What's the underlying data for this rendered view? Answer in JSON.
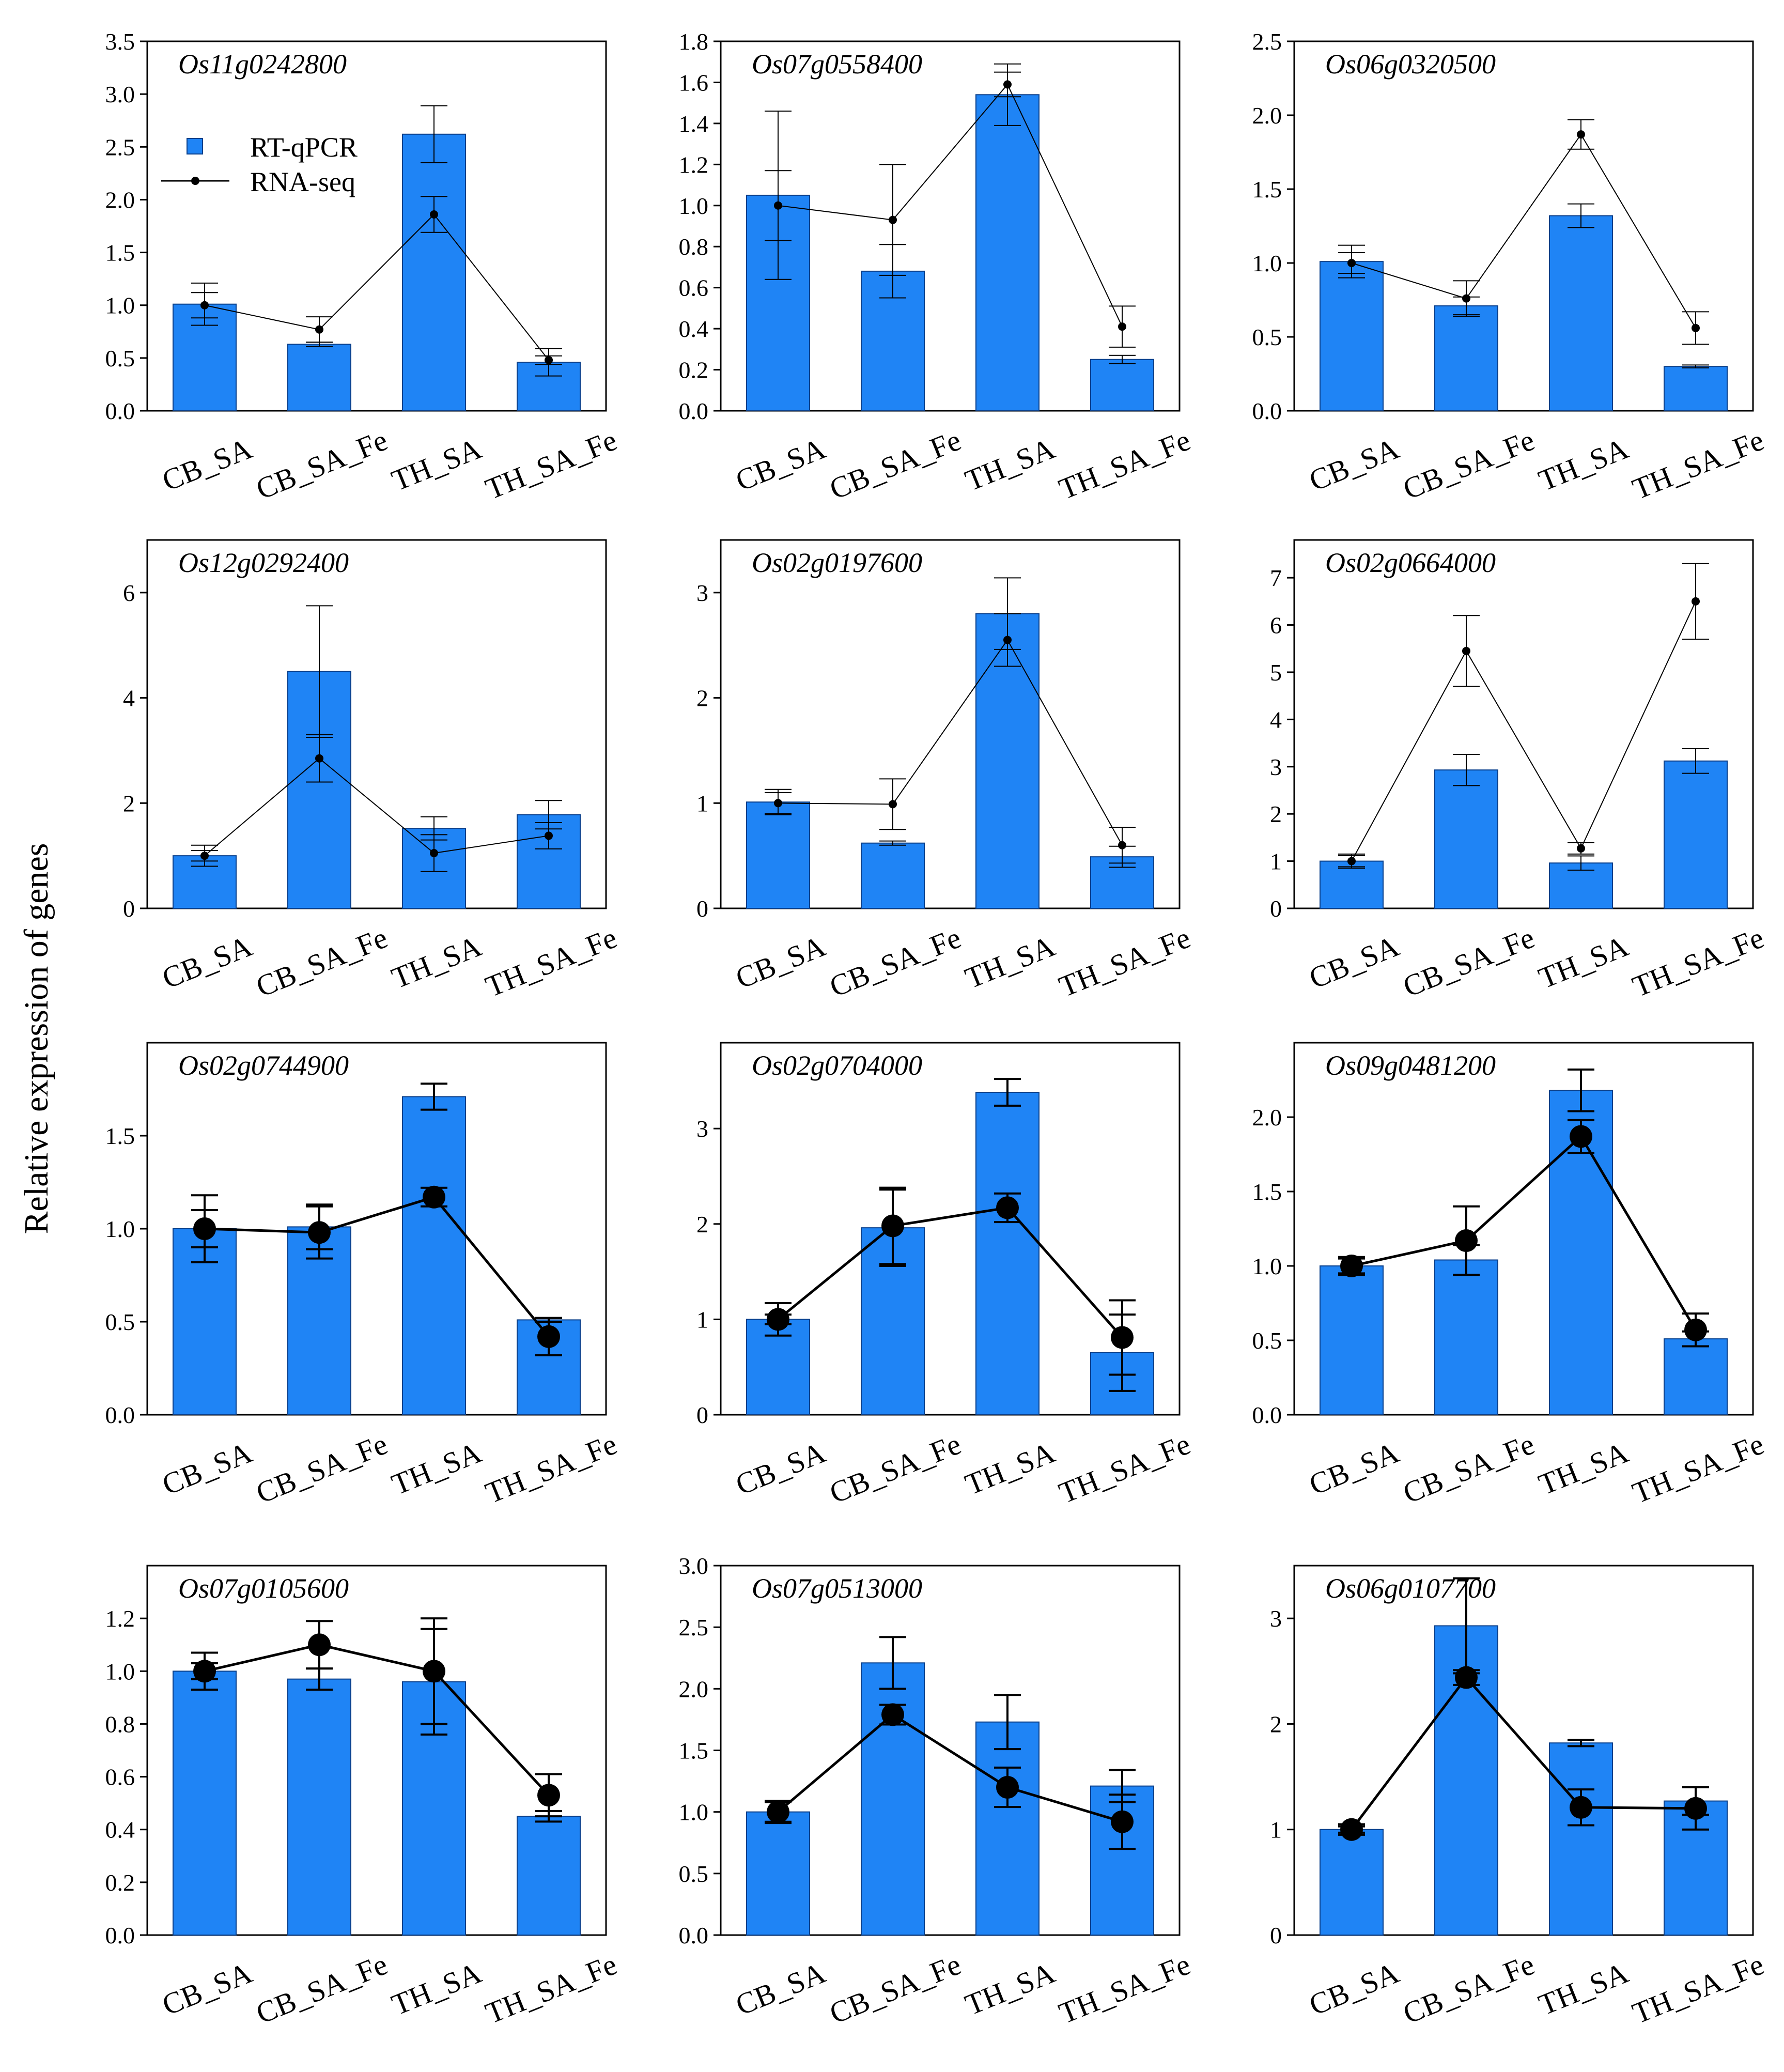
{
  "figure": {
    "ylabel": "Relative expression of genes",
    "legend": {
      "qpcr_label": "RT-qPCR",
      "rnaseq_label": "RNA-seq",
      "placement": "upper-left of first panel"
    },
    "colors": {
      "bar": "#1f84f5",
      "bar_edge": "#0a3f8a",
      "line": "#000000"
    }
  },
  "chart_data": [
    {
      "type": "bar",
      "title": "Os11g0242800",
      "categories": [
        "CB_SA",
        "CB_SA_Fe",
        "TH_SA",
        "TH_SA_Fe"
      ],
      "ylim": [
        0,
        3.5
      ],
      "yticks": [
        0.0,
        0.5,
        1.0,
        1.5,
        2.0,
        2.5,
        3.0,
        3.5
      ],
      "decimals": 1,
      "series": [
        {
          "name": "RT-qPCR",
          "kind": "bar",
          "values": [
            1.01,
            0.63,
            2.62,
            0.46
          ],
          "err": [
            0.2,
            0.02,
            0.27,
            0.13
          ]
        },
        {
          "name": "RNA-seq",
          "kind": "line",
          "values": [
            1.0,
            0.77,
            1.86,
            0.48
          ],
          "err": [
            0.12,
            0.12,
            0.17,
            0.04
          ]
        }
      ],
      "marker": "small"
    },
    {
      "type": "bar",
      "title": "Os07g0558400",
      "categories": [
        "CB_SA",
        "CB_SA_Fe",
        "TH_SA",
        "TH_SA_Fe"
      ],
      "ylim": [
        0,
        1.8
      ],
      "yticks": [
        0.0,
        0.2,
        0.4,
        0.6,
        0.8,
        1.0,
        1.2,
        1.4,
        1.6,
        1.8
      ],
      "decimals": 1,
      "series": [
        {
          "name": "RT-qPCR",
          "kind": "bar",
          "values": [
            1.05,
            0.68,
            1.54,
            0.25
          ],
          "err": [
            0.41,
            0.13,
            0.15,
            0.02
          ]
        },
        {
          "name": "RNA-seq",
          "kind": "line",
          "values": [
            1.0,
            0.93,
            1.59,
            0.41
          ],
          "err": [
            0.17,
            0.27,
            0.06,
            0.1
          ]
        }
      ],
      "marker": "small"
    },
    {
      "type": "bar",
      "title": "Os06g0320500",
      "categories": [
        "CB_SA",
        "CB_SA_Fe",
        "TH_SA",
        "TH_SA_Fe"
      ],
      "ylim": [
        0,
        2.5
      ],
      "yticks": [
        0.0,
        0.5,
        1.0,
        1.5,
        2.0,
        2.5
      ],
      "decimals": 1,
      "series": [
        {
          "name": "RT-qPCR",
          "kind": "bar",
          "values": [
            1.01,
            0.71,
            1.32,
            0.3
          ],
          "err": [
            0.11,
            0.06,
            0.08,
            0.01
          ]
        },
        {
          "name": "RNA-seq",
          "kind": "line",
          "values": [
            1.0,
            0.76,
            1.87,
            0.56
          ],
          "err": [
            0.07,
            0.12,
            0.1,
            0.11
          ]
        }
      ],
      "marker": "small"
    },
    {
      "type": "bar",
      "title": "Os12g0292400",
      "categories": [
        "CB_SA",
        "CB_SA_Fe",
        "TH_SA",
        "TH_SA_Fe"
      ],
      "ylim": [
        0,
        7
      ],
      "yticks": [
        0,
        2,
        4,
        6
      ],
      "decimals": 0,
      "series": [
        {
          "name": "RT-qPCR",
          "kind": "bar",
          "values": [
            1.0,
            4.5,
            1.52,
            1.78
          ],
          "err": [
            0.2,
            1.25,
            0.22,
            0.27
          ]
        },
        {
          "name": "RNA-seq",
          "kind": "line",
          "values": [
            1.0,
            2.85,
            1.05,
            1.38
          ],
          "err": [
            0.1,
            0.45,
            0.35,
            0.25
          ]
        }
      ],
      "marker": "small"
    },
    {
      "type": "bar",
      "title": "Os02g0197600",
      "categories": [
        "CB_SA",
        "CB_SA_Fe",
        "TH_SA",
        "TH_SA_Fe"
      ],
      "ylim": [
        0,
        3.5
      ],
      "yticks": [
        0,
        1,
        2,
        3
      ],
      "decimals": 0,
      "series": [
        {
          "name": "RT-qPCR",
          "kind": "bar",
          "values": [
            1.01,
            0.62,
            2.8,
            0.49
          ],
          "err": [
            0.12,
            0.02,
            0.34,
            0.1
          ]
        },
        {
          "name": "RNA-seq",
          "kind": "line",
          "values": [
            1.0,
            0.99,
            2.55,
            0.6
          ],
          "err": [
            0.1,
            0.24,
            0.25,
            0.17
          ]
        }
      ],
      "marker": "small"
    },
    {
      "type": "bar",
      "title": "Os02g0664000",
      "categories": [
        "CB_SA",
        "CB_SA_Fe",
        "TH_SA",
        "TH_SA_Fe"
      ],
      "ylim": [
        0,
        7.8
      ],
      "yticks": [
        0,
        1,
        2,
        3,
        4,
        5,
        6,
        7
      ],
      "decimals": 0,
      "series": [
        {
          "name": "RT-qPCR",
          "kind": "bar",
          "values": [
            1.0,
            2.93,
            0.96,
            3.12
          ],
          "err": [
            0.15,
            0.33,
            0.15,
            0.26
          ]
        },
        {
          "name": "RNA-seq",
          "kind": "line",
          "values": [
            1.0,
            5.45,
            1.27,
            6.5
          ],
          "err": [
            0.12,
            0.75,
            0.12,
            0.8
          ]
        }
      ],
      "marker": "small"
    },
    {
      "type": "bar",
      "title": "Os02g0744900",
      "categories": [
        "CB_SA",
        "CB_SA_Fe",
        "TH_SA",
        "TH_SA_Fe"
      ],
      "ylim": [
        0,
        2.0
      ],
      "yticks": [
        0.0,
        0.5,
        1.0,
        1.5
      ],
      "decimals": 1,
      "series": [
        {
          "name": "RT-qPCR",
          "kind": "bar",
          "values": [
            1.0,
            1.01,
            1.71,
            0.51
          ],
          "err": [
            0.1,
            0.12,
            0.07,
            0.01
          ]
        },
        {
          "name": "RNA-seq",
          "kind": "line",
          "values": [
            1.0,
            0.98,
            1.17,
            0.42
          ],
          "err": [
            0.18,
            0.14,
            0.05,
            0.1
          ]
        }
      ],
      "marker": "large"
    },
    {
      "type": "bar",
      "title": "Os02g0704000",
      "categories": [
        "CB_SA",
        "CB_SA_Fe",
        "TH_SA",
        "TH_SA_Fe"
      ],
      "ylim": [
        0,
        3.9
      ],
      "yticks": [
        0,
        1,
        2,
        3
      ],
      "decimals": 0,
      "series": [
        {
          "name": "RT-qPCR",
          "kind": "bar",
          "values": [
            1.0,
            1.96,
            3.38,
            0.65
          ],
          "err": [
            0.05,
            0.4,
            0.14,
            0.4
          ]
        },
        {
          "name": "RNA-seq",
          "kind": "line",
          "values": [
            1.0,
            1.98,
            2.17,
            0.81
          ],
          "err": [
            0.17,
            0.4,
            0.15,
            0.39
          ]
        }
      ],
      "marker": "large"
    },
    {
      "type": "bar",
      "title": "Os09g0481200",
      "categories": [
        "CB_SA",
        "CB_SA_Fe",
        "TH_SA",
        "TH_SA_Fe"
      ],
      "ylim": [
        0,
        2.5
      ],
      "yticks": [
        0.0,
        0.5,
        1.0,
        1.5,
        2.0
      ],
      "decimals": 1,
      "series": [
        {
          "name": "RT-qPCR",
          "kind": "bar",
          "values": [
            1.0,
            1.04,
            2.18,
            0.51
          ],
          "err": [
            0.05,
            0.1,
            0.14,
            0.05
          ]
        },
        {
          "name": "RNA-seq",
          "kind": "line",
          "values": [
            1.0,
            1.17,
            1.87,
            0.57
          ],
          "err": [
            0.06,
            0.23,
            0.11,
            0.11
          ]
        }
      ],
      "marker": "large"
    },
    {
      "type": "bar",
      "title": "Os07g0105600",
      "categories": [
        "CB_SA",
        "CB_SA_Fe",
        "TH_SA",
        "TH_SA_Fe"
      ],
      "ylim": [
        0,
        1.4
      ],
      "yticks": [
        0.0,
        0.2,
        0.4,
        0.6,
        0.8,
        1.0,
        1.2
      ],
      "decimals": 1,
      "series": [
        {
          "name": "RT-qPCR",
          "kind": "bar",
          "values": [
            1.0,
            0.97,
            0.96,
            0.45
          ],
          "err": [
            0.07,
            0.04,
            0.2,
            0.02
          ]
        },
        {
          "name": "RNA-seq",
          "kind": "line",
          "values": [
            1.0,
            1.1,
            1.0,
            0.53
          ],
          "err": [
            0.03,
            0.09,
            0.2,
            0.08
          ]
        }
      ],
      "marker": "large"
    },
    {
      "type": "bar",
      "title": "Os07g0513000",
      "categories": [
        "CB_SA",
        "CB_SA_Fe",
        "TH_SA",
        "TH_SA_Fe"
      ],
      "ylim": [
        0,
        3.0
      ],
      "yticks": [
        0.0,
        0.5,
        1.0,
        1.5,
        2.0,
        2.5,
        3.0
      ],
      "decimals": 1,
      "series": [
        {
          "name": "RT-qPCR",
          "kind": "bar",
          "values": [
            1.0,
            2.21,
            1.73,
            1.21
          ],
          "err": [
            0.08,
            0.21,
            0.22,
            0.13
          ]
        },
        {
          "name": "RNA-seq",
          "kind": "line",
          "values": [
            1.0,
            1.79,
            1.2,
            0.92
          ],
          "err": [
            0.09,
            0.08,
            0.16,
            0.22
          ]
        }
      ],
      "marker": "large"
    },
    {
      "type": "bar",
      "title": "Os06g0107700",
      "categories": [
        "CB_SA",
        "CB_SA_Fe",
        "TH_SA",
        "TH_SA_Fe"
      ],
      "ylim": [
        0,
        3.5
      ],
      "yticks": [
        0,
        1,
        2,
        3
      ],
      "decimals": 0,
      "series": [
        {
          "name": "RT-qPCR",
          "kind": "bar",
          "values": [
            1.0,
            2.93,
            1.82,
            1.27
          ],
          "err": [
            0.03,
            0.45,
            0.03,
            0.13
          ]
        },
        {
          "name": "RNA-seq",
          "kind": "line",
          "values": [
            1.0,
            2.44,
            1.21,
            1.2
          ],
          "err": [
            0.05,
            0.07,
            0.17,
            0.2
          ]
        }
      ],
      "marker": "large"
    }
  ]
}
